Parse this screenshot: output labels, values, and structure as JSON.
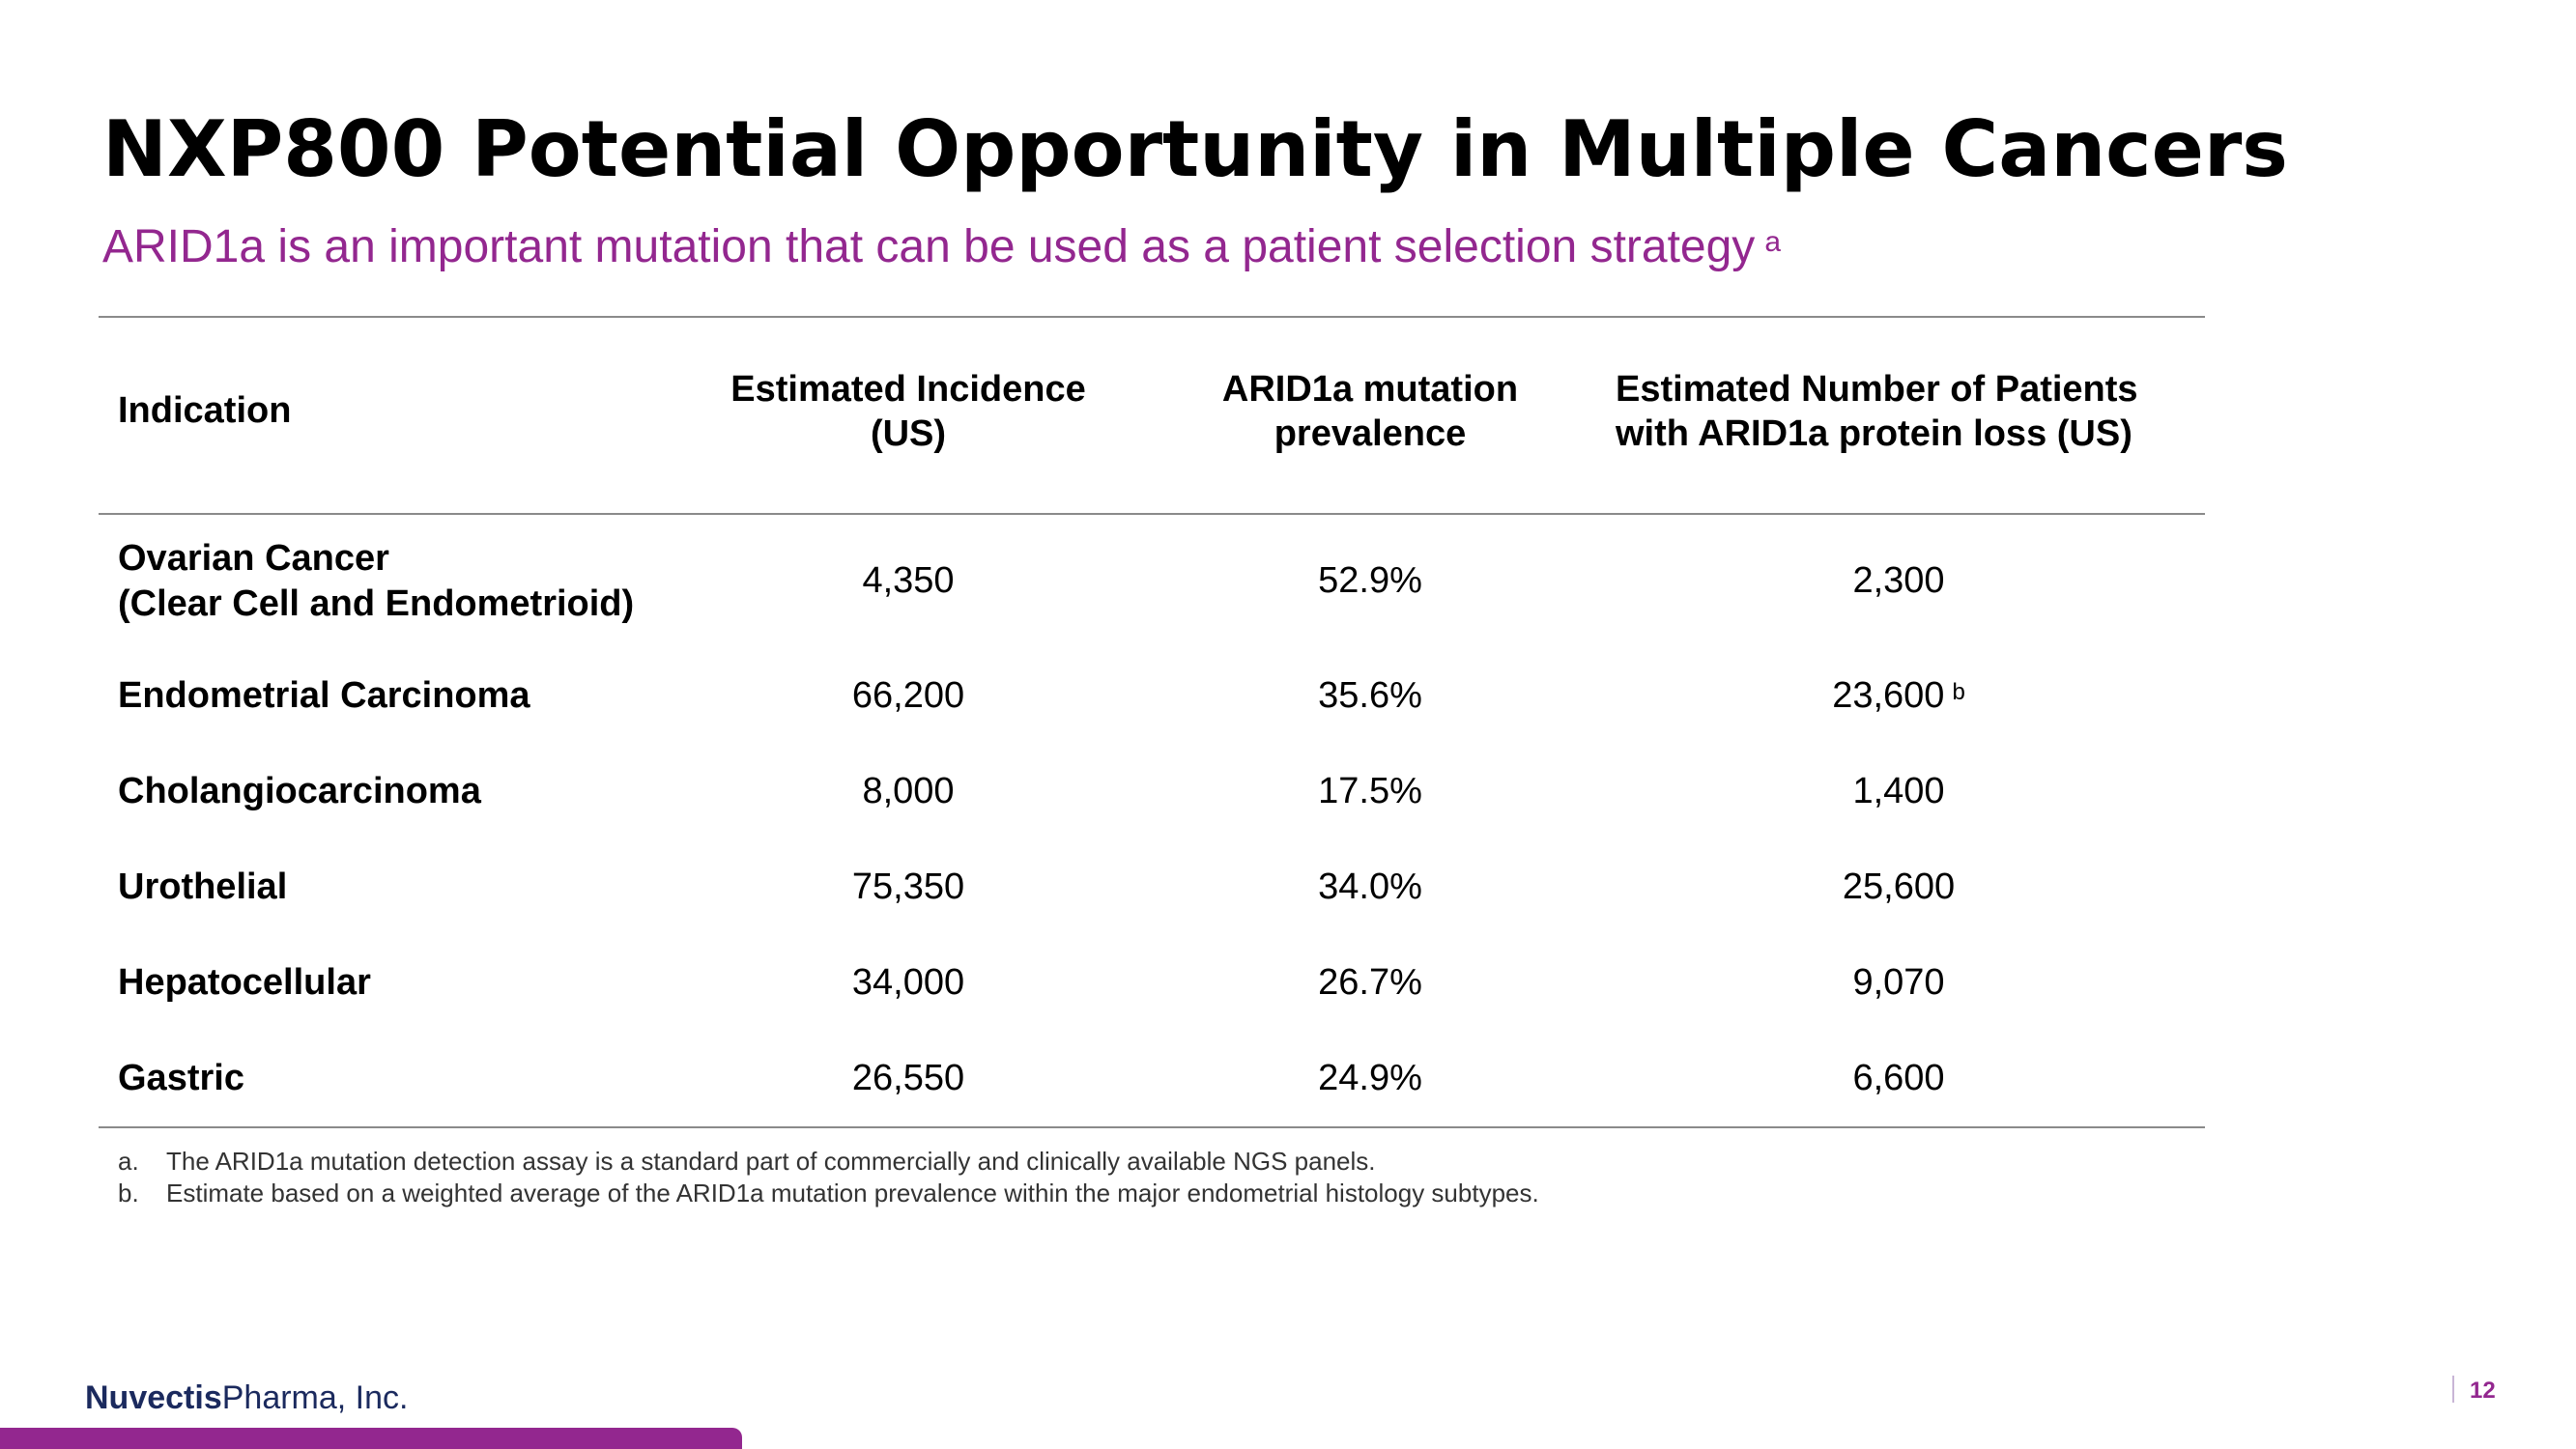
{
  "slide": {
    "title": "NXP800 Potential Opportunity in Multiple Cancers",
    "subtitle": "ARID1a is an important mutation that can be used as a patient selection strategy",
    "subtitle_footnote": "a",
    "accent_color": "#93278f"
  },
  "table": {
    "headers": [
      [
        "Indication"
      ],
      [
        "Estimated Incidence",
        "(US)"
      ],
      [
        "ARID1a mutation",
        "prevalence"
      ],
      [
        "Estimated Number of Patients",
        "with ARID1a protein loss (US)"
      ]
    ],
    "rows": [
      {
        "indication": [
          "Ovarian Cancer",
          "(Clear Cell and Endometrioid)"
        ],
        "incidence": "4,350",
        "prevalence": "52.9%",
        "patients": "2,300",
        "patients_note": ""
      },
      {
        "indication": [
          "Endometrial Carcinoma"
        ],
        "incidence": "66,200",
        "prevalence": "35.6%",
        "patients": "23,600",
        "patients_note": "b"
      },
      {
        "indication": [
          "Cholangiocarcinoma"
        ],
        "incidence": "8,000",
        "prevalence": "17.5%",
        "patients": "1,400",
        "patients_note": ""
      },
      {
        "indication": [
          "Urothelial"
        ],
        "incidence": "75,350",
        "prevalence": "34.0%",
        "patients": "25,600",
        "patients_note": ""
      },
      {
        "indication": [
          "Hepatocellular"
        ],
        "incidence": "34,000",
        "prevalence": "26.7%",
        "patients": "9,070",
        "patients_note": ""
      },
      {
        "indication": [
          "Gastric"
        ],
        "incidence": "26,550",
        "prevalence": "24.9%",
        "patients": "6,600",
        "patients_note": ""
      }
    ]
  },
  "footnotes": [
    {
      "mark": "a.",
      "text": "The ARID1a mutation detection assay is a standard part of commercially and clinically available NGS panels."
    },
    {
      "mark": "b.",
      "text": "Estimate based on a weighted average of the ARID1a mutation prevalence within the major endometrial histology subtypes."
    }
  ],
  "footer": {
    "brand": "Nuvectis",
    "company_rest": "Pharma, Inc.",
    "page_number": "12"
  }
}
